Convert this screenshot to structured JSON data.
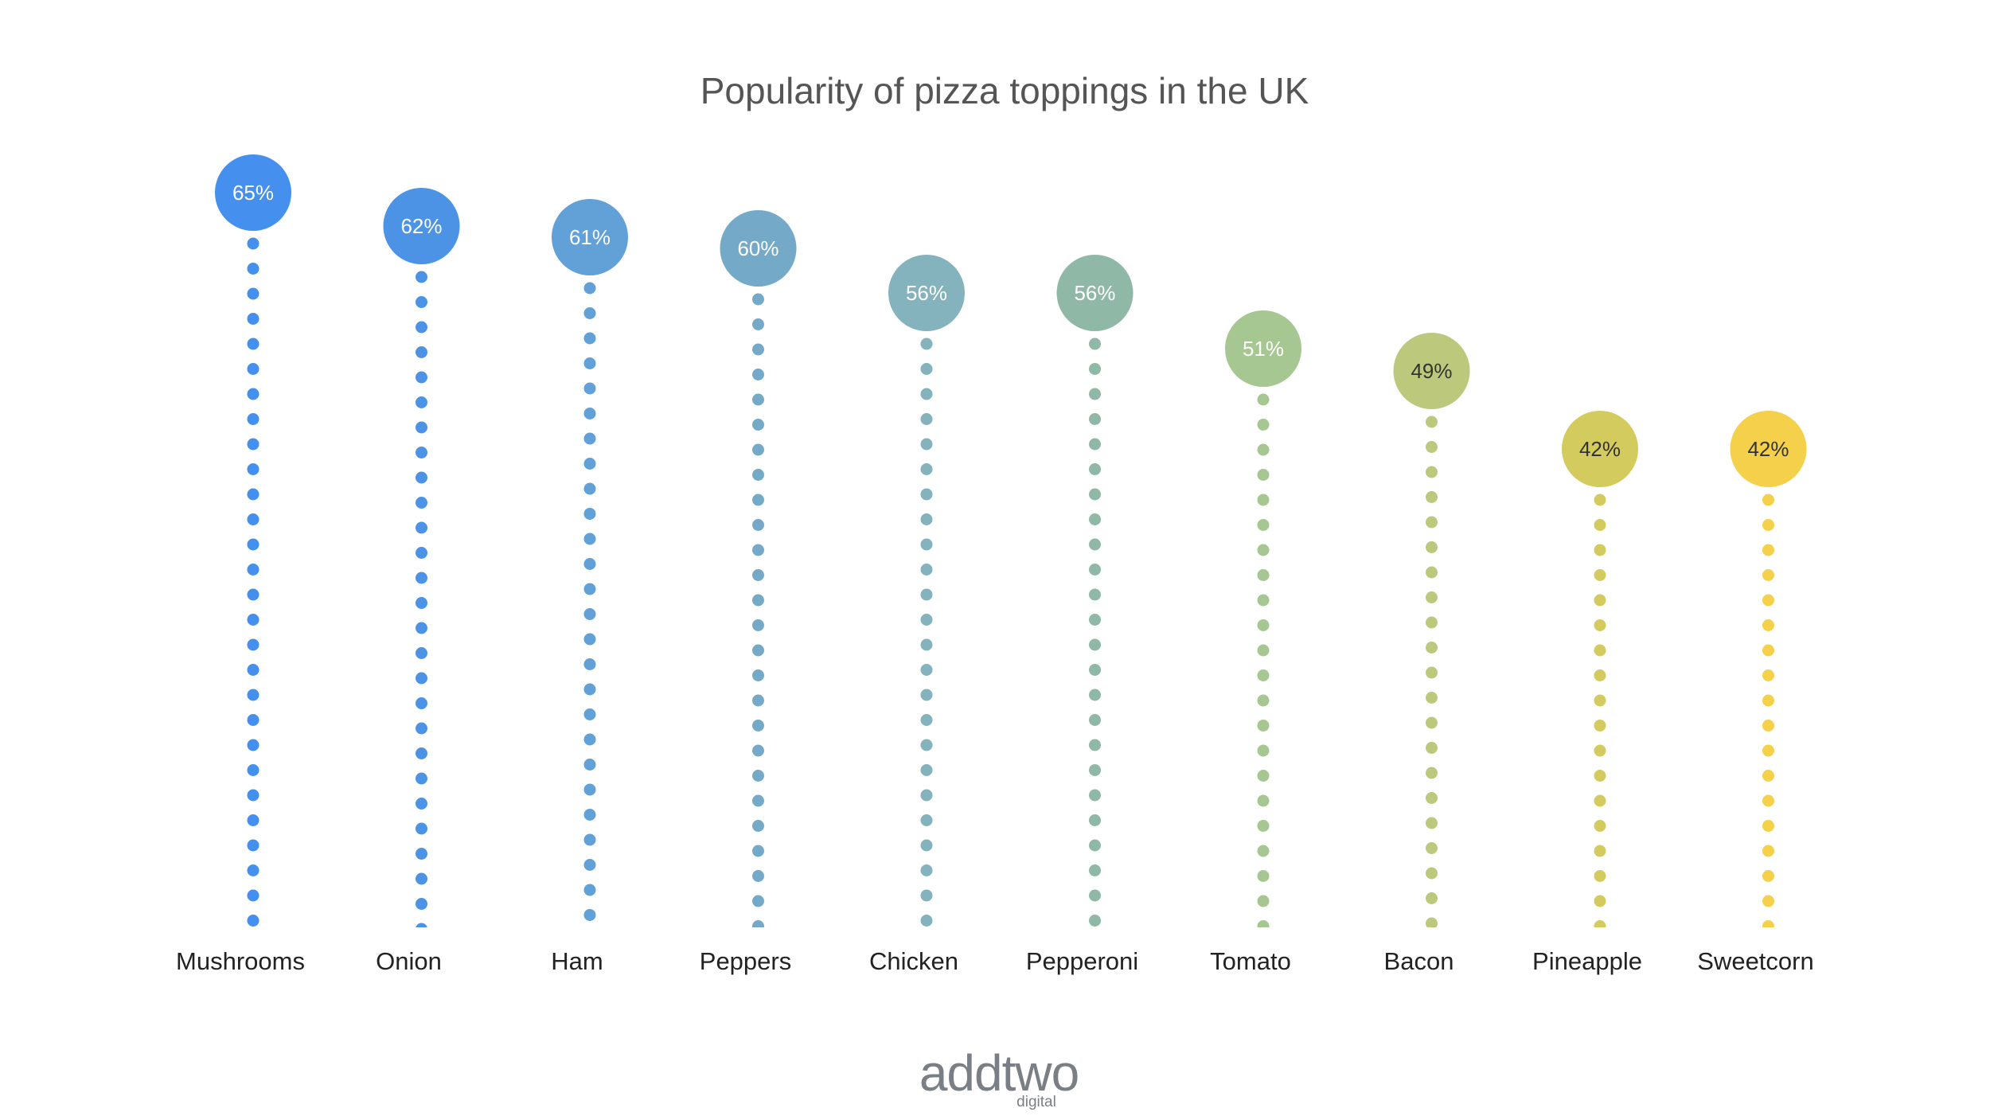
{
  "chart_data": {
    "type": "lollipop",
    "title": "Popularity of pizza toppings in the UK",
    "categories": [
      "Mushrooms",
      "Onion",
      "Ham",
      "Peppers",
      "Chicken",
      "Pepperoni",
      "Tomato",
      "Bacon",
      "Pineapple",
      "Sweetcorn"
    ],
    "values": [
      65,
      62,
      61,
      60,
      56,
      56,
      51,
      49,
      42,
      42
    ],
    "value_labels": [
      "65%",
      "62%",
      "61%",
      "60%",
      "56%",
      "56%",
      "51%",
      "49%",
      "42%",
      "42%"
    ],
    "colors": [
      "#4590ee",
      "#4c93e6",
      "#62a0d8",
      "#75a9c8",
      "#84b2bd",
      "#8fb8a6",
      "#a6c792",
      "#bcc97d",
      "#d4cb5f",
      "#f4d04b"
    ],
    "value_label_colors": [
      "#ffffff",
      "#ffffff",
      "#ffffff",
      "#ffffff",
      "#ffffff",
      "#ffffff",
      "#ffffff",
      "#333333",
      "#333333",
      "#333333"
    ],
    "ylim": [
      0,
      65
    ],
    "grid": false,
    "legend": "none"
  },
  "logo": {
    "name": "addtwo",
    "sub": "digital",
    "color": "#7a7f86"
  }
}
